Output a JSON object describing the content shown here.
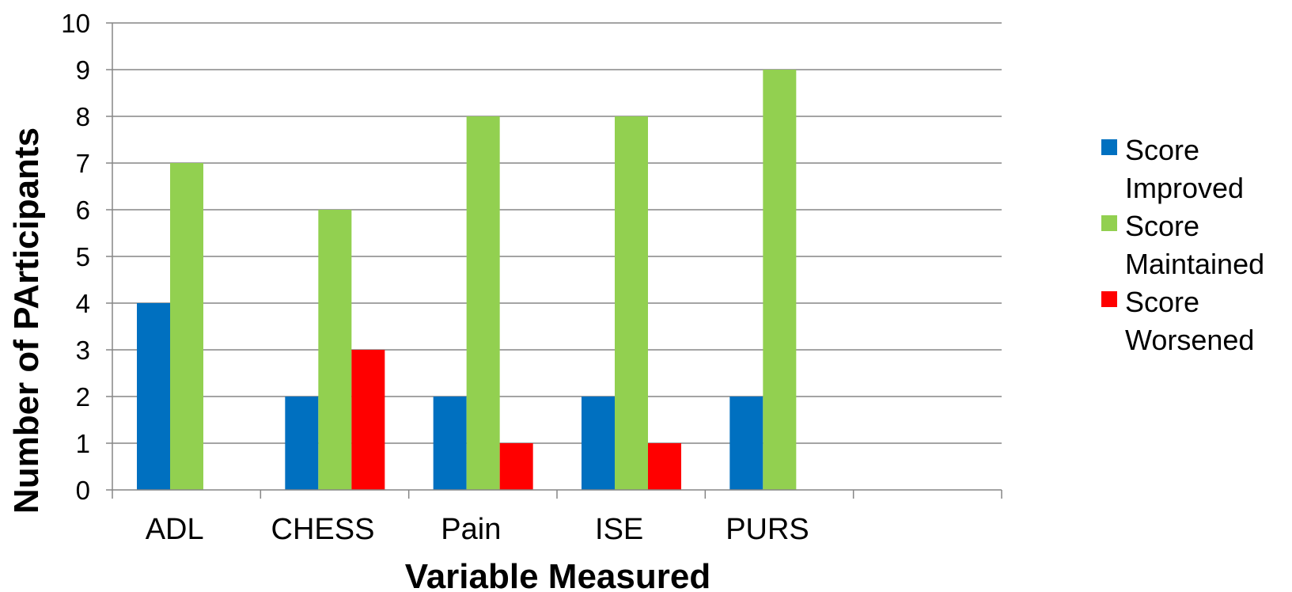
{
  "chart_data": {
    "type": "bar",
    "xlabel": "Variable Measured",
    "ylabel": "Number of PArticipants",
    "ylim": [
      0,
      10
    ],
    "yticks": [
      0,
      1,
      2,
      3,
      4,
      5,
      6,
      7,
      8,
      9,
      10
    ],
    "grid": true,
    "legend_position": "right",
    "categories": [
      "ADL",
      "CHESS",
      "Pain",
      "ISE",
      "PURS",
      ""
    ],
    "series": [
      {
        "name": "Score Improved",
        "legend_lines": [
          "Score",
          "Improved"
        ],
        "color": "#0070C0",
        "values": [
          4,
          2,
          2,
          2,
          2,
          null
        ]
      },
      {
        "name": "Score Maintained",
        "legend_lines": [
          "Score",
          "Maintained"
        ],
        "color": "#92D050",
        "values": [
          7,
          6,
          8,
          8,
          9,
          null
        ]
      },
      {
        "name": "Score Worsened",
        "legend_lines": [
          "Score",
          "Worsened"
        ],
        "color": "#FF0000",
        "values": [
          0,
          3,
          1,
          1,
          0,
          null
        ]
      }
    ]
  }
}
